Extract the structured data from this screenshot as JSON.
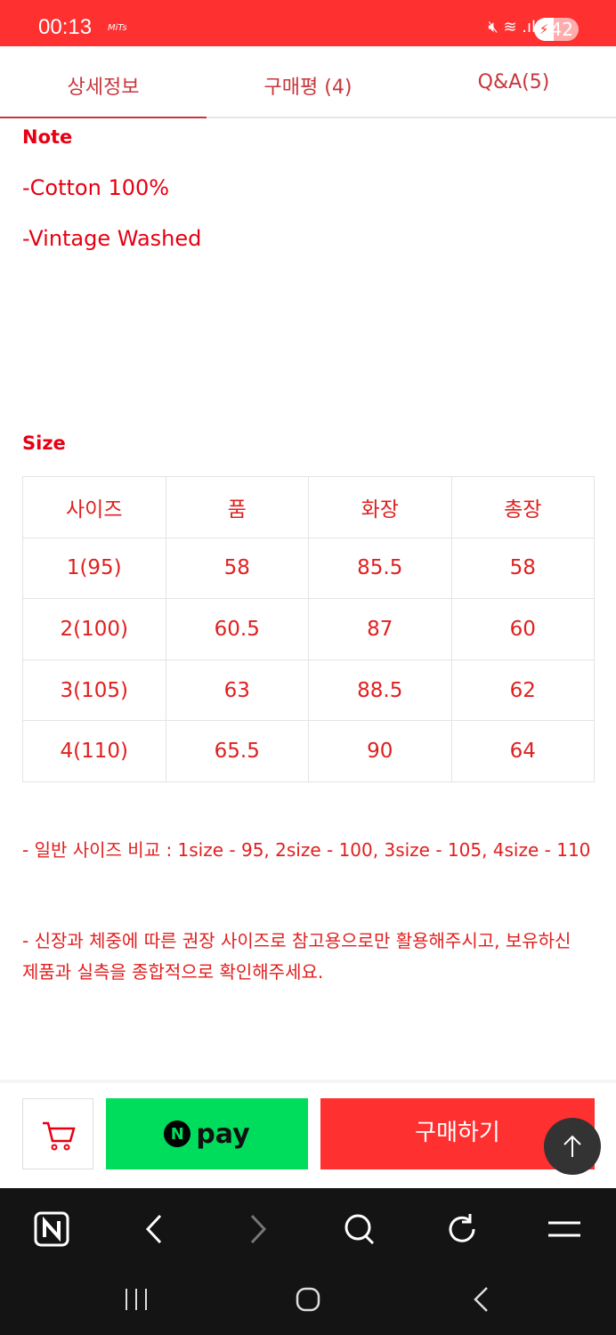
{
  "status": {
    "time": "00:13",
    "app": "MiTs",
    "battery": "42"
  },
  "tabs": [
    {
      "label": "상세정보"
    },
    {
      "label": "구매평 (4)"
    },
    {
      "label": "Q&A(5)"
    }
  ],
  "note": {
    "heading": "Note",
    "lines": [
      "-Cotton 100%",
      "-Vintage Washed"
    ]
  },
  "size": {
    "heading": "Size",
    "headers": [
      "사이즈",
      "품",
      "화장",
      "총장"
    ],
    "rows": [
      [
        "1(95)",
        "58",
        "85.5",
        "58"
      ],
      [
        "2(100)",
        "60.5",
        "87",
        "60"
      ],
      [
        "3(105)",
        "63",
        "88.5",
        "62"
      ],
      [
        "4(110)",
        "65.5",
        "90",
        "64"
      ]
    ]
  },
  "notes": [
    "- 일반 사이즈 비교 : 1size - 95, 2size - 100, 3size - 105, 4size - 110",
    "- 신장과 체중에 따른 권장 사이즈로 참고용으로만 활용해주시고, 보유하신 제품과 실측을 종합적으로 확인해주세요."
  ],
  "actions": {
    "npay_n": "N",
    "npay_label": "pay",
    "buy_label": "구매하기"
  },
  "colors": {
    "accent": "#fe3030",
    "npay": "#00dd5d",
    "text": "#e60012"
  }
}
